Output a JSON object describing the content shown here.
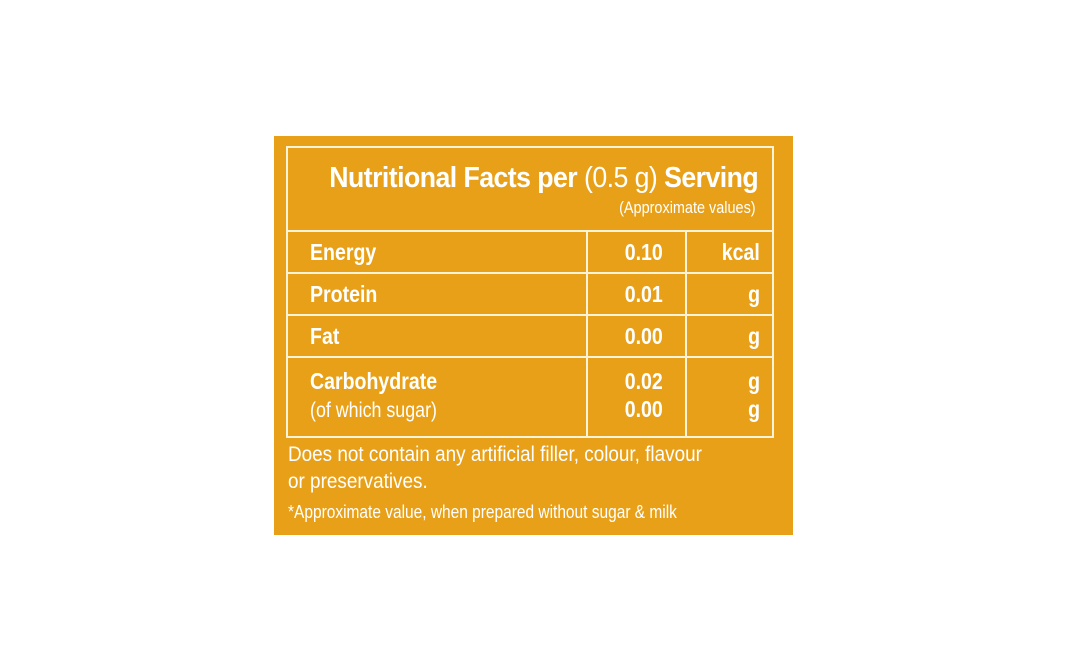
{
  "panel": {
    "bg_color": "#e8a018",
    "text_color": "#ffffff",
    "title_bold_1": "Nutritional Facts per ",
    "title_regular": "(0.5 g)",
    "title_bold_2": " Serving",
    "subtitle": "(Approximate values)",
    "rows": [
      {
        "name": "Energy",
        "value": "0.10",
        "unit": "kcal"
      },
      {
        "name": "Protein",
        "value": "0.01",
        "unit": "g"
      },
      {
        "name": "Fat",
        "value": "0.00",
        "unit": "g"
      },
      {
        "name": "Carbohydrate",
        "value": "0.02",
        "unit": "g",
        "sub_name": "(of which sugar)",
        "sub_value": "0.00",
        "sub_unit": "g"
      }
    ],
    "note_line1": "Does not contain any artificial filler, colour, flavour",
    "note_line2": "or preservatives.",
    "footnote": "*Approximate value, when prepared without sugar & milk"
  }
}
